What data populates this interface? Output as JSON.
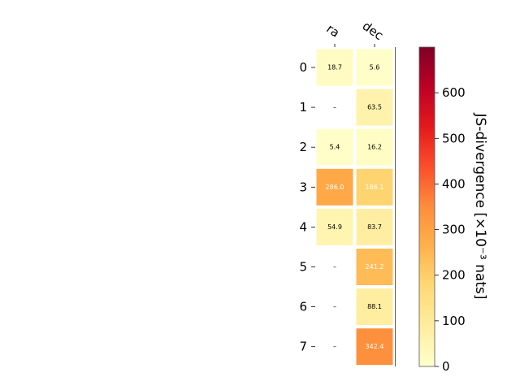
{
  "chart_data": {
    "type": "heatmap",
    "columns": [
      "ra",
      "dec"
    ],
    "rows": [
      "0",
      "1",
      "2",
      "3",
      "4",
      "5",
      "6",
      "7"
    ],
    "values": [
      [
        18.7,
        5.6
      ],
      [
        null,
        63.5
      ],
      [
        5.4,
        16.2
      ],
      [
        286.0,
        186.1
      ],
      [
        54.9,
        83.7
      ],
      [
        null,
        241.2
      ],
      [
        null,
        88.1
      ],
      [
        null,
        342.4
      ]
    ],
    "cell_labels": [
      [
        "18.7",
        "5.6"
      ],
      [
        "–",
        "63.5"
      ],
      [
        "5.4",
        "16.2"
      ],
      [
        "286.0",
        "186.1"
      ],
      [
        "54.9",
        "83.7"
      ],
      [
        "–",
        "241.2"
      ],
      [
        "–",
        "88.1"
      ],
      [
        "–",
        "342.4"
      ]
    ],
    "colorbar": {
      "label": "JS-divergence [×10⁻³ nats]",
      "range": [
        0,
        700
      ],
      "ticks": [
        0,
        100,
        200,
        300,
        400,
        500,
        600
      ],
      "colormap": "YlOrRd"
    }
  }
}
